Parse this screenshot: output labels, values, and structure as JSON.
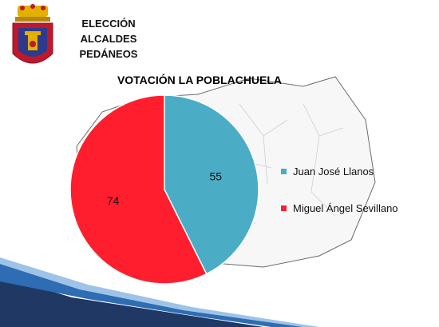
{
  "header": {
    "title_lines": [
      "ELECCIÓN",
      "ALCALDES",
      "PEDÁNEOS"
    ]
  },
  "chart_data": {
    "type": "pie",
    "title": "VOTACIÓN LA POBLACHUELA",
    "series": [
      {
        "name": "Juan José Llanos",
        "value": 55,
        "color": "#4BACC6"
      },
      {
        "name": "Miguel Ángel Sevillano",
        "value": 74,
        "color": "#FF1E2D"
      }
    ],
    "legend_position": "right"
  },
  "colors": {
    "accent_dark": "#1F3864",
    "accent_blue": "#2E6DB4",
    "crest_red": "#C0182B",
    "crest_gold": "#E2B100"
  },
  "icons": [
    "coat-of-arms-icon"
  ]
}
